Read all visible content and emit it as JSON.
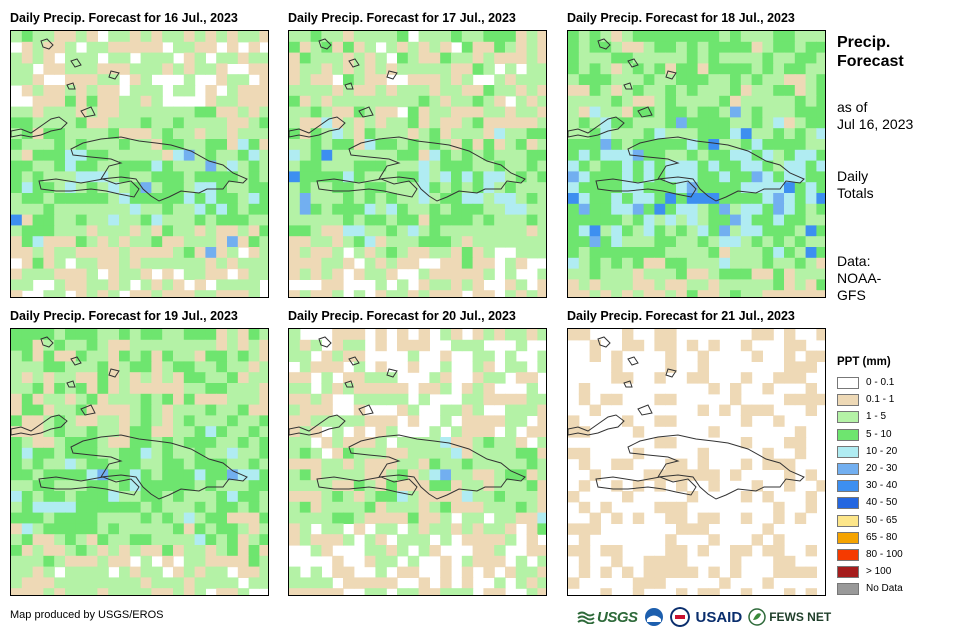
{
  "panels": [
    {
      "title": "Daily Precip. Forecast for 16 Jul., 2023"
    },
    {
      "title": "Daily Precip. Forecast for 17 Jul., 2023"
    },
    {
      "title": "Daily Precip. Forecast for 18 Jul., 2023"
    },
    {
      "title": "Daily Precip. Forecast for 19 Jul., 2023"
    },
    {
      "title": "Daily Precip. Forecast for 20 Jul., 2023"
    },
    {
      "title": "Daily Precip. Forecast for 21 Jul., 2023"
    }
  ],
  "side": {
    "heading_line1": "Precip.",
    "heading_line2": "Forecast",
    "asof_line1": "as of",
    "asof_line2": "Jul 16, 2023",
    "totals_line1": "Daily",
    "totals_line2": "Totals",
    "data_line1": "Data:",
    "data_line2": "NOAA-",
    "data_line3": "GFS"
  },
  "legend": {
    "title": "PPT (mm)",
    "items": [
      {
        "label": "0 - 0.1",
        "color": "#ffffff"
      },
      {
        "label": "0.1 - 1",
        "color": "#eed9b6"
      },
      {
        "label": "1 - 5",
        "color": "#b4f2a6"
      },
      {
        "label": "5 - 10",
        "color": "#6ee56f"
      },
      {
        "label": "10 - 20",
        "color": "#b0ecf2"
      },
      {
        "label": "20 - 30",
        "color": "#72aff0"
      },
      {
        "label": "30 - 40",
        "color": "#3d8ff0"
      },
      {
        "label": "40 - 50",
        "color": "#2466e0"
      },
      {
        "label": "50 - 65",
        "color": "#fde68a"
      },
      {
        "label": "65 - 80",
        "color": "#f5a300"
      },
      {
        "label": "80 - 100",
        "color": "#f53a00"
      },
      {
        "label": "> 100",
        "color": "#a51c1c"
      },
      {
        "label": "No Data",
        "color": "#999999"
      }
    ]
  },
  "footer": {
    "credit": "Map produced by USGS/EROS",
    "logo_usgs": "USGS",
    "logo_usaid": "USAID",
    "logo_fews": "FEWS NET"
  }
}
